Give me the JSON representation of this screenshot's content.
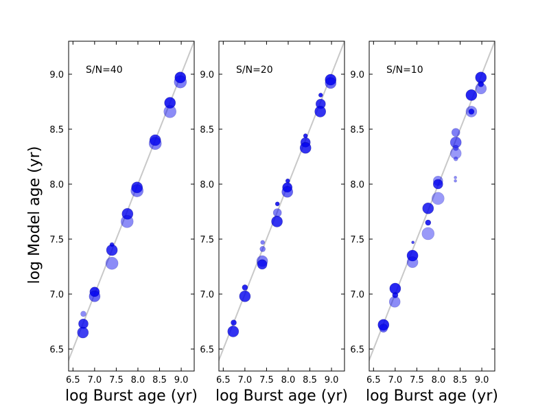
{
  "chart_data": [
    {
      "type": "scatter",
      "annotation": "S/N=40",
      "xlabel": "log Burst age (yr)",
      "ylabel": "log Model age (yr)",
      "xlim": [
        6.4,
        9.3
      ],
      "ylim": [
        6.3,
        9.3
      ],
      "xticks": [
        "6.5",
        "7.0",
        "7.5",
        "8.0",
        "8.5",
        "9.0"
      ],
      "yticks": [
        "6.5",
        "7.0",
        "7.5",
        "8.0",
        "8.5",
        "9.0"
      ],
      "one_to_one_line": true,
      "grid": false,
      "marker_color": "#0000ee",
      "points": [
        {
          "x": 6.74,
          "y": 6.82,
          "s": 4,
          "a": 0.45
        },
        {
          "x": 6.74,
          "y": 6.73,
          "s": 7,
          "a": 0.8
        },
        {
          "x": 6.73,
          "y": 6.65,
          "s": 8,
          "a": 0.75
        },
        {
          "x": 7.0,
          "y": 7.02,
          "s": 7,
          "a": 0.85
        },
        {
          "x": 7.0,
          "y": 6.98,
          "s": 8,
          "a": 0.6
        },
        {
          "x": 7.4,
          "y": 7.45,
          "s": 3,
          "a": 0.8
        },
        {
          "x": 7.4,
          "y": 7.4,
          "s": 8,
          "a": 0.8
        },
        {
          "x": 7.4,
          "y": 7.28,
          "s": 9,
          "a": 0.45
        },
        {
          "x": 7.76,
          "y": 7.73,
          "s": 8,
          "a": 0.8
        },
        {
          "x": 7.75,
          "y": 7.66,
          "s": 9,
          "a": 0.45
        },
        {
          "x": 7.98,
          "y": 7.97,
          "s": 8,
          "a": 0.8
        },
        {
          "x": 7.98,
          "y": 7.94,
          "s": 9,
          "a": 0.5
        },
        {
          "x": 8.4,
          "y": 8.4,
          "s": 8,
          "a": 0.8
        },
        {
          "x": 8.4,
          "y": 8.37,
          "s": 9,
          "a": 0.5
        },
        {
          "x": 8.74,
          "y": 8.74,
          "s": 8,
          "a": 0.85
        },
        {
          "x": 8.74,
          "y": 8.66,
          "s": 9,
          "a": 0.45
        },
        {
          "x": 8.98,
          "y": 8.97,
          "s": 8,
          "a": 0.85
        },
        {
          "x": 8.98,
          "y": 8.93,
          "s": 9,
          "a": 0.5
        }
      ]
    },
    {
      "type": "scatter",
      "annotation": "S/N=20",
      "xlabel": "log Burst age (yr)",
      "ylabel": "",
      "xlim": [
        6.4,
        9.3
      ],
      "ylim": [
        6.3,
        9.3
      ],
      "xticks": [
        "6.5",
        "7.0",
        "7.5",
        "8.0",
        "8.5",
        "9.0"
      ],
      "yticks": [
        "6.5",
        "7.0",
        "7.5",
        "8.0",
        "8.5",
        "9.0"
      ],
      "one_to_one_line": true,
      "grid": false,
      "marker_color": "#0000ee",
      "points": [
        {
          "x": 6.74,
          "y": 6.74,
          "s": 4,
          "a": 0.85
        },
        {
          "x": 6.73,
          "y": 6.66,
          "s": 8,
          "a": 0.8
        },
        {
          "x": 7.0,
          "y": 7.06,
          "s": 4,
          "a": 0.85
        },
        {
          "x": 7.0,
          "y": 6.98,
          "s": 8,
          "a": 0.8
        },
        {
          "x": 7.41,
          "y": 7.47,
          "s": 3,
          "a": 0.5
        },
        {
          "x": 7.41,
          "y": 7.41,
          "s": 4,
          "a": 0.5
        },
        {
          "x": 7.4,
          "y": 7.3,
          "s": 8,
          "a": 0.5
        },
        {
          "x": 7.4,
          "y": 7.27,
          "s": 7,
          "a": 0.8
        },
        {
          "x": 7.75,
          "y": 7.82,
          "s": 3,
          "a": 0.85
        },
        {
          "x": 7.75,
          "y": 7.74,
          "s": 6,
          "a": 0.5
        },
        {
          "x": 7.74,
          "y": 7.66,
          "s": 8,
          "a": 0.8
        },
        {
          "x": 7.99,
          "y": 8.03,
          "s": 3,
          "a": 0.85
        },
        {
          "x": 7.98,
          "y": 7.97,
          "s": 7,
          "a": 0.85
        },
        {
          "x": 7.98,
          "y": 7.93,
          "s": 8,
          "a": 0.6
        },
        {
          "x": 8.4,
          "y": 8.44,
          "s": 3,
          "a": 0.85
        },
        {
          "x": 8.4,
          "y": 8.38,
          "s": 7,
          "a": 0.8
        },
        {
          "x": 8.4,
          "y": 8.33,
          "s": 8,
          "a": 0.8
        },
        {
          "x": 8.75,
          "y": 8.81,
          "s": 3,
          "a": 0.85
        },
        {
          "x": 8.75,
          "y": 8.73,
          "s": 7,
          "a": 0.8
        },
        {
          "x": 8.74,
          "y": 8.66,
          "s": 8,
          "a": 0.8
        },
        {
          "x": 8.98,
          "y": 8.95,
          "s": 8,
          "a": 0.85
        },
        {
          "x": 8.98,
          "y": 8.92,
          "s": 8,
          "a": 0.6
        }
      ]
    },
    {
      "type": "scatter",
      "annotation": "S/N=10",
      "xlabel": "log Burst age (yr)",
      "ylabel": "",
      "xlim": [
        6.4,
        9.3
      ],
      "ylim": [
        6.3,
        9.3
      ],
      "xticks": [
        "6.5",
        "7.0",
        "7.5",
        "8.0",
        "8.5",
        "9.0"
      ],
      "yticks": [
        "6.5",
        "7.0",
        "7.5",
        "8.0",
        "8.5",
        "9.0"
      ],
      "one_to_one_line": true,
      "grid": false,
      "marker_color": "#0000ee",
      "points": [
        {
          "x": 6.73,
          "y": 6.72,
          "s": 8,
          "a": 0.85
        },
        {
          "x": 6.73,
          "y": 6.69,
          "s": 6,
          "a": 0.6
        },
        {
          "x": 7.0,
          "y": 7.05,
          "s": 8,
          "a": 0.85
        },
        {
          "x": 7.0,
          "y": 6.99,
          "s": 4,
          "a": 0.85
        },
        {
          "x": 6.99,
          "y": 6.93,
          "s": 8,
          "a": 0.45
        },
        {
          "x": 7.41,
          "y": 7.47,
          "s": 2,
          "a": 0.7
        },
        {
          "x": 7.4,
          "y": 7.35,
          "s": 8,
          "a": 0.85
        },
        {
          "x": 7.4,
          "y": 7.29,
          "s": 8,
          "a": 0.45
        },
        {
          "x": 7.76,
          "y": 7.78,
          "s": 8,
          "a": 0.8
        },
        {
          "x": 7.76,
          "y": 7.65,
          "s": 4,
          "a": 0.85
        },
        {
          "x": 7.76,
          "y": 7.55,
          "s": 9,
          "a": 0.4
        },
        {
          "x": 7.99,
          "y": 8.03,
          "s": 7,
          "a": 0.45
        },
        {
          "x": 7.99,
          "y": 8.0,
          "s": 7,
          "a": 0.8
        },
        {
          "x": 7.99,
          "y": 7.87,
          "s": 9,
          "a": 0.4
        },
        {
          "x": 8.4,
          "y": 8.47,
          "s": 6,
          "a": 0.5
        },
        {
          "x": 8.4,
          "y": 8.38,
          "s": 8,
          "a": 0.6
        },
        {
          "x": 8.4,
          "y": 8.33,
          "s": 4,
          "a": 0.5
        },
        {
          "x": 8.4,
          "y": 8.28,
          "s": 8,
          "a": 0.4
        },
        {
          "x": 8.4,
          "y": 8.23,
          "s": 3,
          "a": 0.45
        },
        {
          "x": 8.39,
          "y": 8.06,
          "s": 2,
          "a": 0.45
        },
        {
          "x": 8.39,
          "y": 8.03,
          "s": 2,
          "a": 0.45
        },
        {
          "x": 8.76,
          "y": 8.81,
          "s": 8,
          "a": 0.85
        },
        {
          "x": 8.76,
          "y": 8.66,
          "s": 4,
          "a": 0.85
        },
        {
          "x": 8.76,
          "y": 8.66,
          "s": 8,
          "a": 0.45
        },
        {
          "x": 8.98,
          "y": 8.97,
          "s": 8,
          "a": 0.85
        },
        {
          "x": 8.98,
          "y": 8.91,
          "s": 4,
          "a": 0.85
        },
        {
          "x": 8.98,
          "y": 8.87,
          "s": 8,
          "a": 0.45
        }
      ]
    }
  ]
}
